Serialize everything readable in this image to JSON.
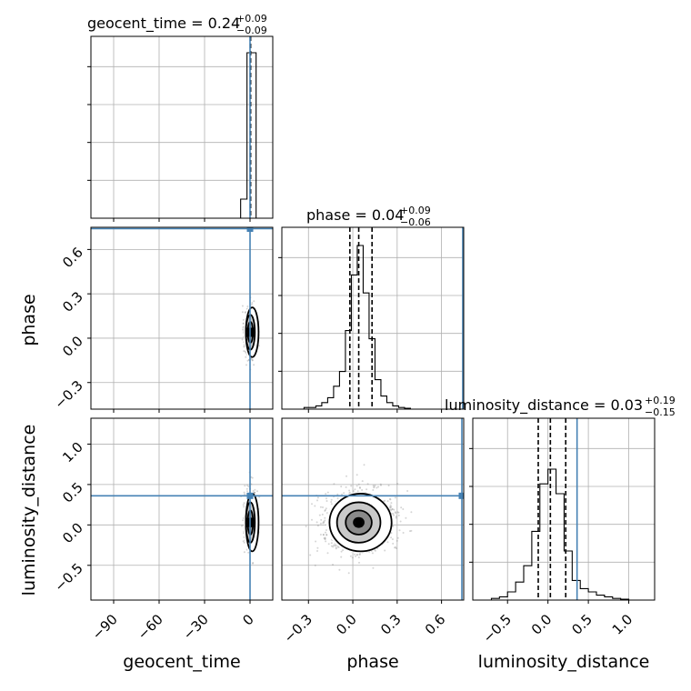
{
  "chart_data": {
    "type": "corner",
    "parameters": [
      {
        "name": "geocent_time",
        "axis_label": "geocent_time",
        "title_main": "geocent_time = 0.24",
        "title_plus": "+0.09",
        "title_minus": "−0.09",
        "range": [
          -105,
          15
        ],
        "ticks": [
          -90,
          -60,
          -30,
          0
        ],
        "tick_labels": [
          "−90",
          "−60",
          "−30",
          "0"
        ],
        "median": 0.24,
        "q_low": 0.15,
        "q_high": 0.33,
        "truth": 0,
        "hist_bins": [
          {
            "from": -6,
            "to": -3,
            "value": 0
          },
          {
            "from": -6,
            "to": -3,
            "value": 0.105
          },
          {
            "from": -3,
            "to": 0,
            "value": 0.105
          },
          {
            "from": 0,
            "to": 2,
            "value": 0.0
          },
          {
            "from": 0,
            "to": 6.5,
            "value": 1.0
          },
          {
            "from": 6.5,
            "to": 7,
            "value": 0.0
          }
        ]
      },
      {
        "name": "phase",
        "axis_label": "phase",
        "title_main": "phase = 0.04",
        "title_plus": "+0.09",
        "title_minus": "−0.06",
        "range": [
          -0.48,
          0.75
        ],
        "ticks": [
          -0.3,
          0.0,
          0.3,
          0.6
        ],
        "tick_labels": [
          "−0.3",
          "0.0",
          "0.3",
          "0.6"
        ],
        "median": 0.04,
        "q_low": -0.02,
        "q_high": 0.13,
        "truth": 0.75,
        "hist": {
          "edges": [
            -0.33,
            -0.29,
            -0.25,
            -0.21,
            -0.17,
            -0.13,
            -0.09,
            -0.05,
            -0.01,
            0.03,
            0.07,
            0.11,
            0.15,
            0.19,
            0.23,
            0.27,
            0.31,
            0.35,
            0.39
          ],
          "values": [
            0.01,
            0.01,
            0.02,
            0.04,
            0.07,
            0.14,
            0.23,
            0.48,
            0.82,
            1.0,
            0.71,
            0.43,
            0.18,
            0.08,
            0.04,
            0.02,
            0.01,
            0.005
          ]
        }
      },
      {
        "name": "luminosity_distance",
        "axis_label": "luminosity_distance",
        "title_main": "luminosity_distance = 0.03",
        "title_plus": "+0.19",
        "title_minus": "−0.15",
        "range": [
          -0.93,
          1.32
        ],
        "ticks": [
          -0.5,
          0.0,
          0.5,
          1.0
        ],
        "tick_labels": [
          "−0.5",
          "0.0",
          "0.5",
          "1.0"
        ],
        "median": 0.03,
        "q_low": -0.12,
        "q_high": 0.22,
        "truth": 0.36,
        "hist": {
          "edges": [
            -0.7,
            -0.6,
            -0.5,
            -0.4,
            -0.3,
            -0.2,
            -0.1,
            0.0,
            0.1,
            0.2,
            0.3,
            0.4,
            0.5,
            0.6,
            0.7,
            0.8,
            0.9,
            1.0
          ],
          "values": [
            0.01,
            0.02,
            0.05,
            0.11,
            0.21,
            0.42,
            0.71,
            0.8,
            0.65,
            0.3,
            0.12,
            0.07,
            0.05,
            0.03,
            0.02,
            0.01,
            0.005
          ]
        }
      }
    ],
    "truth_color": "#4682b4",
    "hist_color": "#000000",
    "grid": true,
    "y_tick_sets": {
      "phase": {
        "ticks": [
          -0.3,
          0.0,
          0.3,
          0.6
        ],
        "labels": [
          "−0.3",
          "0.0",
          "0.3",
          "0.6"
        ]
      },
      "luminosity_distance": {
        "ticks": [
          -0.5,
          0.0,
          0.5,
          1.0
        ],
        "labels": [
          "−0.5",
          "0.0",
          "0.5",
          "1.0"
        ]
      }
    }
  }
}
